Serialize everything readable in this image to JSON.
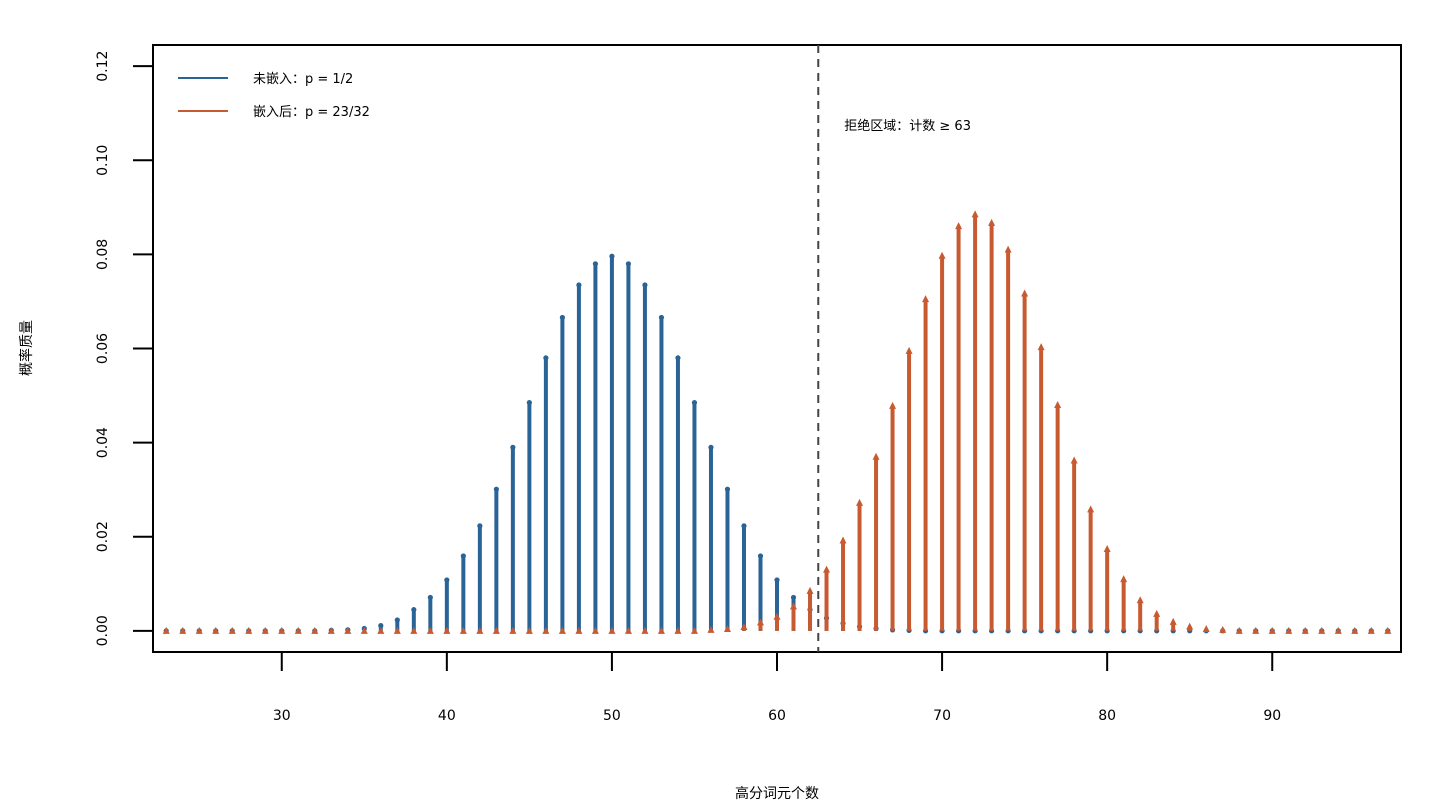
{
  "chart_data": {
    "type": "line",
    "subtype": "probability-mass-stem",
    "title": "",
    "xlabel": "高分词元个数",
    "ylabel": "概率质量",
    "xlim": [
      22.2,
      97.8
    ],
    "ylim": [
      -0.0045,
      0.1245
    ],
    "x_ticks": [
      30,
      40,
      50,
      60,
      70,
      80,
      90
    ],
    "y_ticks": [
      "0.00",
      "0.02",
      "0.04",
      "0.06",
      "0.08",
      "0.10",
      "0.12"
    ],
    "grid": false,
    "legend": {
      "position": "top-left"
    },
    "x": [
      23,
      24,
      25,
      26,
      27,
      28,
      29,
      30,
      31,
      32,
      33,
      34,
      35,
      36,
      37,
      38,
      39,
      40,
      41,
      42,
      43,
      44,
      45,
      46,
      47,
      48,
      49,
      50,
      51,
      52,
      53,
      54,
      55,
      56,
      57,
      58,
      59,
      60,
      61,
      62,
      63,
      64,
      65,
      66,
      67,
      68,
      69,
      70,
      71,
      72,
      73,
      74,
      75,
      76,
      77,
      78,
      79,
      80,
      81,
      82,
      83,
      84,
      85,
      86,
      87,
      88,
      89,
      90,
      91,
      92,
      93,
      94,
      95,
      96,
      97
    ],
    "series": [
      {
        "name": "未嵌入：p = 1/2",
        "color": "#2a6496",
        "marker": "circle",
        "values": [
          0.0,
          0.0,
          0.0,
          0.0,
          0.0,
          0.0,
          0.0,
          0.0,
          0.0,
          0.0,
          0.0001,
          0.0002,
          0.0005,
          0.0011,
          0.0023,
          0.0045,
          0.0071,
          0.0108,
          0.0159,
          0.0223,
          0.0301,
          0.039,
          0.0485,
          0.058,
          0.0666,
          0.0735,
          0.078,
          0.0796,
          0.078,
          0.0735,
          0.0666,
          0.058,
          0.0485,
          0.039,
          0.0301,
          0.0223,
          0.0159,
          0.0108,
          0.0071,
          0.0045,
          0.0027,
          0.0016,
          0.0009,
          0.0005,
          0.0002,
          0.0001,
          0.0,
          0.0,
          0.0,
          0.0,
          0.0,
          0.0,
          0.0,
          0.0,
          0.0,
          0.0,
          0.0,
          0.0,
          0.0,
          0.0,
          0.0,
          0.0,
          0.0,
          0.0,
          0.0,
          0.0,
          0.0,
          0.0,
          0.0,
          0.0,
          0.0,
          0.0,
          0.0,
          0.0,
          0.0
        ]
      },
      {
        "name": "嵌入后：p = 23/32",
        "color": "#c85a32",
        "marker": "triangle",
        "values": [
          0.0,
          0.0,
          0.0,
          0.0,
          0.0,
          0.0,
          0.0,
          0.0,
          0.0,
          0.0,
          0.0,
          0.0,
          0.0,
          0.0,
          0.0,
          0.0,
          0.0,
          0.0,
          0.0,
          0.0,
          0.0,
          0.0,
          0.0,
          0.0,
          0.0,
          0.0,
          0.0,
          0.0,
          0.0,
          0.0,
          0.0,
          0.0,
          0.0,
          0.0002,
          0.0004,
          0.0008,
          0.0018,
          0.003,
          0.0052,
          0.0085,
          0.013,
          0.0192,
          0.0272,
          0.037,
          0.0478,
          0.0595,
          0.0705,
          0.0797,
          0.086,
          0.0885,
          0.0867,
          0.081,
          0.0717,
          0.0603,
          0.048,
          0.0362,
          0.0258,
          0.0174,
          0.011,
          0.0065,
          0.0036,
          0.0019,
          0.0009,
          0.0004,
          0.0002,
          0.0,
          0.0,
          0.0,
          0.0,
          0.0,
          0.0,
          0.0,
          0.0,
          0.0,
          0.0
        ]
      }
    ],
    "reference_line": {
      "x": 62.5,
      "style": "dashed",
      "label": "拒绝区域：计数 ≥ 63"
    }
  }
}
